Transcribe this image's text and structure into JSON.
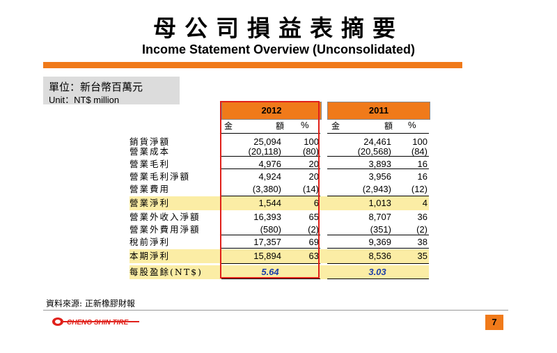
{
  "header": {
    "title_zh": "母公司損益表摘要",
    "title_en": "Income Statement Overview (Unconsolidated)"
  },
  "unit": {
    "zh": "單位：新台幣百萬元",
    "en": "Unit：NT$ million"
  },
  "columns": {
    "year_2012": "2012",
    "year_2011": "2011",
    "amount_char1": "金",
    "amount_char2": "額",
    "percent": "%"
  },
  "rows": [
    {
      "label": "銷貨淨額",
      "a2012": "25,094",
      "p2012": "100",
      "a2011": "24,461",
      "p2011": "100",
      "highlight": false
    },
    {
      "label": "營業成本",
      "a2012": "(20,118)",
      "p2012": "(80)",
      "a2011": "(20,568)",
      "p2011": "(84)",
      "highlight": false
    },
    {
      "label": "營業毛利",
      "a2012": "4,976",
      "p2012": "20",
      "a2011": "3,893",
      "p2011": "16",
      "highlight": false
    },
    {
      "label": "營業毛利淨額",
      "a2012": "4,924",
      "p2012": "20",
      "a2011": "3,956",
      "p2011": "16",
      "highlight": false
    },
    {
      "label": "營業費用",
      "a2012": "(3,380)",
      "p2012": "(14)",
      "a2011": "(2,943)",
      "p2011": "(12)",
      "highlight": false
    },
    {
      "label": "營業淨利",
      "a2012": "1,544",
      "p2012": "6",
      "a2011": "1,013",
      "p2011": "4",
      "highlight": true
    },
    {
      "label": "營業外收入淨額",
      "a2012": "16,393",
      "p2012": "65",
      "a2011": "8,707",
      "p2011": "36",
      "highlight": false
    },
    {
      "label": "營業外費用淨額",
      "a2012": "(580)",
      "p2012": "(2)",
      "a2011": "(351)",
      "p2011": "(2)",
      "highlight": false
    },
    {
      "label": "稅前淨利",
      "a2012": "17,357",
      "p2012": "69",
      "a2011": "9,369",
      "p2011": "38",
      "highlight": false
    },
    {
      "label": "本期淨利",
      "a2012": "15,894",
      "p2012": "63",
      "a2011": "8,536",
      "p2011": "35",
      "highlight": true
    }
  ],
  "eps": {
    "label": "每股盈餘(NT$)",
    "v2012": "5.64",
    "v2011": "3.03"
  },
  "footer": {
    "source": "資料來源: 正新橡膠財報",
    "logo_text": "CHENG SHIN TIRE",
    "page": "7"
  },
  "colors": {
    "accent": "#f07a1a",
    "highlight": "#fbeda5",
    "frame": "#e0201a",
    "eps_text": "#1c3ea8"
  }
}
